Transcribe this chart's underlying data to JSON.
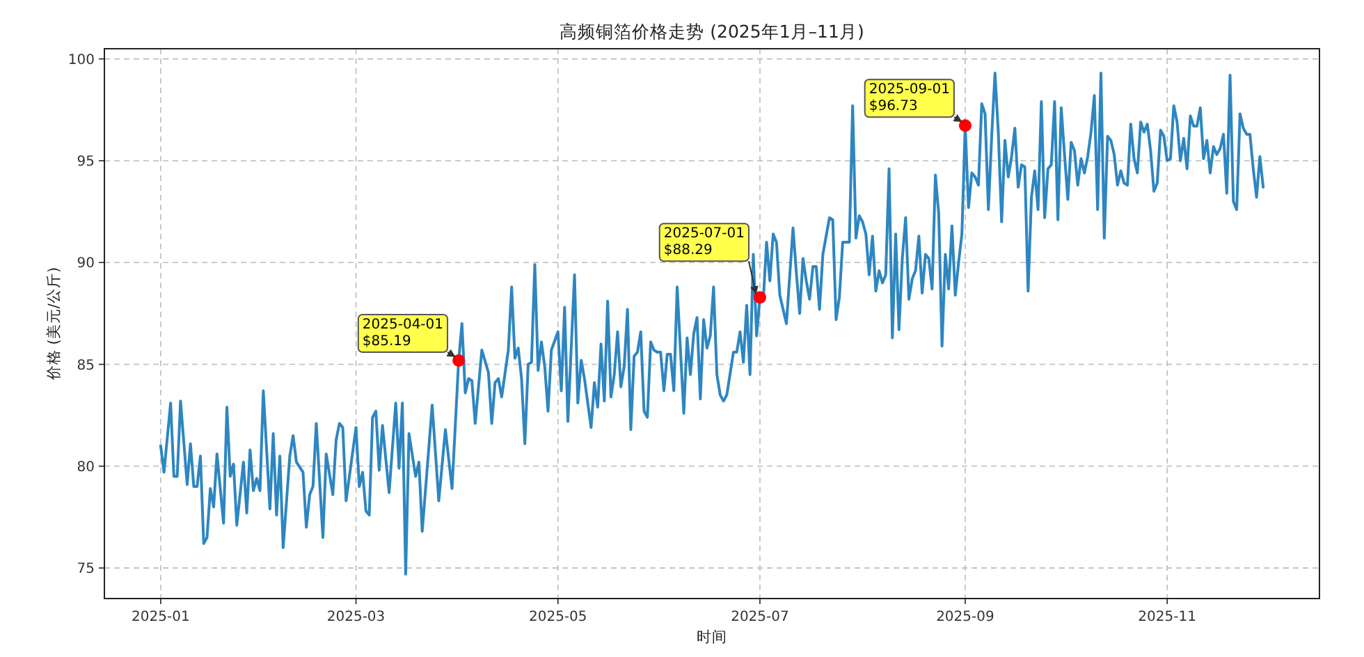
{
  "chart_data": {
    "type": "line",
    "title": "高频铜箔价格走势 (2025年1月–11月)",
    "xlabel": "时间",
    "ylabel": "价格 (美元/公斤)",
    "xlim": [
      "2024-12-15",
      "2025-12-17"
    ],
    "ylim": [
      73.5,
      100.5
    ],
    "xticks": [
      "2025-01",
      "2025-03",
      "2025-05",
      "2025-07",
      "2025-09",
      "2025-11"
    ],
    "yticks": [
      75,
      80,
      85,
      90,
      95,
      100
    ],
    "grid": true,
    "series": [
      {
        "color": "#2e86c1",
        "x": [
          "2025-01-01",
          "2025-01-02",
          "2025-01-04",
          "2025-01-05",
          "2025-01-06",
          "2025-01-07",
          "2025-01-09",
          "2025-01-10",
          "2025-01-11",
          "2025-01-12",
          "2025-01-13",
          "2025-01-14",
          "2025-01-15",
          "2025-01-16",
          "2025-01-17",
          "2025-01-18",
          "2025-01-20",
          "2025-01-21",
          "2025-01-22",
          "2025-01-23",
          "2025-01-24",
          "2025-01-26",
          "2025-01-27",
          "2025-01-28",
          "2025-01-29",
          "2025-01-30",
          "2025-01-31",
          "2025-02-01",
          "2025-02-03",
          "2025-02-04",
          "2025-02-05",
          "2025-02-06",
          "2025-02-07",
          "2025-02-09",
          "2025-02-10",
          "2025-02-11",
          "2025-02-13",
          "2025-02-14",
          "2025-02-15",
          "2025-02-16",
          "2025-02-17",
          "2025-02-19",
          "2025-02-20",
          "2025-02-22",
          "2025-02-23",
          "2025-02-24",
          "2025-02-25",
          "2025-02-26",
          "2025-03-01",
          "2025-03-02",
          "2025-03-03",
          "2025-03-04",
          "2025-03-05",
          "2025-03-06",
          "2025-03-07",
          "2025-03-08",
          "2025-03-09",
          "2025-03-11",
          "2025-03-13",
          "2025-03-14",
          "2025-03-15",
          "2025-03-16",
          "2025-03-17",
          "2025-03-19",
          "2025-03-20",
          "2025-03-21",
          "2025-03-24",
          "2025-03-26",
          "2025-03-28",
          "2025-03-30",
          "2025-04-01",
          "2025-04-02",
          "2025-04-03",
          "2025-04-04",
          "2025-04-05",
          "2025-04-06",
          "2025-04-08",
          "2025-04-10",
          "2025-04-11",
          "2025-04-12",
          "2025-04-13",
          "2025-04-14",
          "2025-04-16",
          "2025-04-17",
          "2025-04-18",
          "2025-04-19",
          "2025-04-20",
          "2025-04-21",
          "2025-04-22",
          "2025-04-23",
          "2025-04-24",
          "2025-04-25",
          "2025-04-26",
          "2025-04-27",
          "2025-04-28",
          "2025-04-29",
          "2025-05-01",
          "2025-05-02",
          "2025-05-03",
          "2025-05-04",
          "2025-05-06",
          "2025-05-07",
          "2025-05-08",
          "2025-05-09",
          "2025-05-11",
          "2025-05-12",
          "2025-05-13",
          "2025-05-14",
          "2025-05-15",
          "2025-05-16",
          "2025-05-17",
          "2025-05-18",
          "2025-05-19",
          "2025-05-20",
          "2025-05-21",
          "2025-05-22",
          "2025-05-23",
          "2025-05-24",
          "2025-05-25",
          "2025-05-26",
          "2025-05-27",
          "2025-05-28",
          "2025-05-29",
          "2025-05-30",
          "2025-05-31",
          "2025-06-01",
          "2025-06-02",
          "2025-06-03",
          "2025-06-04",
          "2025-06-05",
          "2025-06-06",
          "2025-06-08",
          "2025-06-09",
          "2025-06-10",
          "2025-06-11",
          "2025-06-12",
          "2025-06-13",
          "2025-06-14",
          "2025-06-15",
          "2025-06-16",
          "2025-06-17",
          "2025-06-18",
          "2025-06-19",
          "2025-06-20",
          "2025-06-21",
          "2025-06-23",
          "2025-06-24",
          "2025-06-25",
          "2025-06-26",
          "2025-06-27",
          "2025-06-28",
          "2025-06-29",
          "2025-06-30",
          "2025-07-01",
          "2025-07-02",
          "2025-07-03",
          "2025-07-04",
          "2025-07-05",
          "2025-07-06",
          "2025-07-07",
          "2025-07-09",
          "2025-07-11",
          "2025-07-12",
          "2025-07-13",
          "2025-07-14",
          "2025-07-15",
          "2025-07-16",
          "2025-07-17",
          "2025-07-18",
          "2025-07-19",
          "2025-07-20",
          "2025-07-21",
          "2025-07-22",
          "2025-07-23",
          "2025-07-24",
          "2025-07-25",
          "2025-07-26",
          "2025-07-27",
          "2025-07-28",
          "2025-07-29",
          "2025-07-30",
          "2025-07-31",
          "2025-08-01",
          "2025-08-02",
          "2025-08-03",
          "2025-08-04",
          "2025-08-05",
          "2025-08-06",
          "2025-08-07",
          "2025-08-08",
          "2025-08-09",
          "2025-08-10",
          "2025-08-11",
          "2025-08-12",
          "2025-08-13",
          "2025-08-14",
          "2025-08-15",
          "2025-08-16",
          "2025-08-17",
          "2025-08-18",
          "2025-08-19",
          "2025-08-20",
          "2025-08-21",
          "2025-08-22",
          "2025-08-23",
          "2025-08-24",
          "2025-08-25",
          "2025-08-26",
          "2025-08-27",
          "2025-08-28",
          "2025-08-29",
          "2025-08-30",
          "2025-08-31",
          "2025-09-01",
          "2025-09-02",
          "2025-09-03",
          "2025-09-04",
          "2025-09-05",
          "2025-09-06",
          "2025-09-07",
          "2025-09-08",
          "2025-09-09",
          "2025-09-10",
          "2025-09-11",
          "2025-09-12",
          "2025-09-13",
          "2025-09-14",
          "2025-09-15",
          "2025-09-16",
          "2025-09-17",
          "2025-09-18",
          "2025-09-19",
          "2025-09-20",
          "2025-09-21",
          "2025-09-22",
          "2025-09-23",
          "2025-09-24",
          "2025-09-25",
          "2025-09-26",
          "2025-09-27",
          "2025-09-28",
          "2025-09-29",
          "2025-09-30",
          "2025-10-01",
          "2025-10-02",
          "2025-10-03",
          "2025-10-04",
          "2025-10-05",
          "2025-10-06",
          "2025-10-07",
          "2025-10-08",
          "2025-10-09",
          "2025-10-10",
          "2025-10-11",
          "2025-10-12",
          "2025-10-13",
          "2025-10-14",
          "2025-10-15",
          "2025-10-16",
          "2025-10-17",
          "2025-10-18",
          "2025-10-19",
          "2025-10-20",
          "2025-10-21",
          "2025-10-22",
          "2025-10-23",
          "2025-10-24",
          "2025-10-25",
          "2025-10-26",
          "2025-10-27",
          "2025-10-28",
          "2025-10-29",
          "2025-10-30",
          "2025-10-31",
          "2025-11-01",
          "2025-11-02",
          "2025-11-03",
          "2025-11-04",
          "2025-11-05",
          "2025-11-06",
          "2025-11-07",
          "2025-11-08",
          "2025-11-09",
          "2025-11-10",
          "2025-11-11",
          "2025-11-12",
          "2025-11-13",
          "2025-11-14",
          "2025-11-15",
          "2025-11-16",
          "2025-11-17",
          "2025-11-18",
          "2025-11-19",
          "2025-11-20",
          "2025-11-21",
          "2025-11-22",
          "2025-11-23",
          "2025-11-24",
          "2025-11-25",
          "2025-11-26",
          "2025-11-27",
          "2025-11-28",
          "2025-11-29",
          "2025-11-30"
        ],
        "values": [
          81.0,
          79.7,
          83.1,
          79.5,
          79.5,
          83.2,
          79.1,
          81.1,
          79.0,
          79.0,
          80.5,
          76.2,
          76.5,
          78.9,
          78.0,
          80.6,
          77.2,
          82.9,
          79.5,
          80.1,
          77.1,
          80.2,
          77.7,
          80.8,
          78.8,
          79.4,
          78.8,
          83.7,
          77.9,
          81.6,
          77.6,
          80.5,
          76.0,
          80.5,
          81.5,
          80.2,
          79.7,
          77.0,
          78.6,
          79.0,
          82.1,
          76.5,
          80.6,
          78.6,
          81.3,
          82.1,
          81.9,
          78.3,
          81.9,
          79.0,
          79.7,
          77.8,
          77.6,
          82.4,
          82.7,
          79.8,
          82.0,
          78.7,
          83.1,
          79.9,
          83.1,
          74.7,
          81.6,
          79.5,
          80.2,
          76.8,
          83.0,
          78.3,
          81.8,
          78.9,
          85.19,
          87.0,
          83.6,
          84.3,
          84.2,
          82.1,
          85.7,
          84.6,
          82.1,
          84.1,
          84.3,
          83.4,
          85.7,
          88.8,
          85.3,
          85.8,
          84.3,
          81.1,
          85.0,
          85.1,
          89.9,
          84.7,
          86.1,
          84.9,
          82.7,
          85.7,
          86.6,
          83.7,
          87.8,
          82.2,
          89.4,
          83.1,
          85.2,
          84.3,
          81.9,
          84.1,
          82.9,
          86.0,
          83.2,
          88.1,
          83.4,
          84.5,
          86.6,
          83.9,
          84.9,
          87.7,
          81.8,
          85.4,
          85.6,
          86.6,
          82.7,
          82.4,
          86.1,
          85.7,
          85.6,
          85.6,
          83.7,
          85.5,
          85.5,
          83.7,
          88.8,
          82.6,
          86.3,
          84.5,
          86.5,
          87.3,
          83.3,
          87.2,
          85.8,
          86.4,
          88.8,
          84.5,
          83.5,
          83.2,
          83.5,
          85.6,
          85.6,
          86.6,
          85.1,
          87.9,
          84.5,
          90.4,
          86.4,
          88.29,
          88.1,
          91.0,
          89.1,
          91.4,
          91.0,
          88.4,
          87.0,
          91.7,
          89.5,
          87.5,
          90.2,
          89.1,
          88.2,
          89.8,
          89.8,
          87.7,
          90.4,
          91.3,
          92.2,
          92.1,
          87.2,
          88.3,
          91.0,
          91.0,
          91.0,
          97.7,
          91.2,
          92.3,
          92.0,
          91.4,
          89.4,
          91.3,
          88.6,
          89.6,
          89.0,
          89.4,
          94.6,
          86.3,
          91.4,
          86.7,
          90.2,
          92.2,
          88.2,
          89.2,
          89.6,
          91.3,
          88.5,
          90.4,
          90.2,
          88.7,
          94.3,
          92.4,
          85.9,
          90.4,
          88.7,
          91.8,
          88.4,
          90.0,
          91.4,
          96.73,
          92.7,
          94.4,
          94.2,
          93.8,
          97.8,
          97.3,
          92.6,
          96.2,
          99.3,
          96.4,
          92.0,
          96.0,
          94.2,
          95.2,
          96.6,
          93.7,
          94.8,
          94.7,
          88.6,
          93.2,
          94.5,
          92.6,
          97.9,
          92.2,
          94.6,
          94.8,
          97.9,
          92.1,
          97.6,
          95.3,
          93.1,
          95.9,
          95.5,
          93.8,
          95.1,
          94.4,
          95.2,
          96.4,
          98.2,
          92.6,
          99.3,
          91.2,
          96.2,
          96.0,
          95.3,
          93.8,
          94.5,
          93.9,
          93.8,
          96.8,
          95.1,
          94.4,
          96.9,
          96.4,
          96.8,
          95.5,
          93.5,
          93.9,
          96.5,
          96.2,
          95.0,
          95.1,
          97.7,
          96.9,
          95.0,
          96.1,
          94.6,
          97.2,
          96.7,
          96.7,
          97.6,
          95.1,
          96.0,
          94.4,
          95.7,
          95.3,
          95.6,
          96.3,
          93.4,
          99.2,
          93.0,
          92.6,
          97.3,
          96.6,
          96.3,
          96.3,
          94.6,
          93.2,
          95.2,
          93.7
        ]
      },
      {
        "type": "scatter",
        "color": "#ff0000",
        "marker": "circle",
        "x": [
          "2025-04-01",
          "2025-07-01",
          "2025-09-01"
        ],
        "values": [
          85.19,
          88.29,
          96.73
        ]
      }
    ],
    "annotations": [
      {
        "text": "2025-04-01\n$85.19",
        "x": "2025-04-01",
        "y": 85.19
      },
      {
        "text": "2025-07-01\n$88.29",
        "x": "2025-07-01",
        "y": 88.29
      },
      {
        "text": "2025-09-01\n$96.73",
        "x": "2025-09-01",
        "y": 96.73
      }
    ]
  }
}
